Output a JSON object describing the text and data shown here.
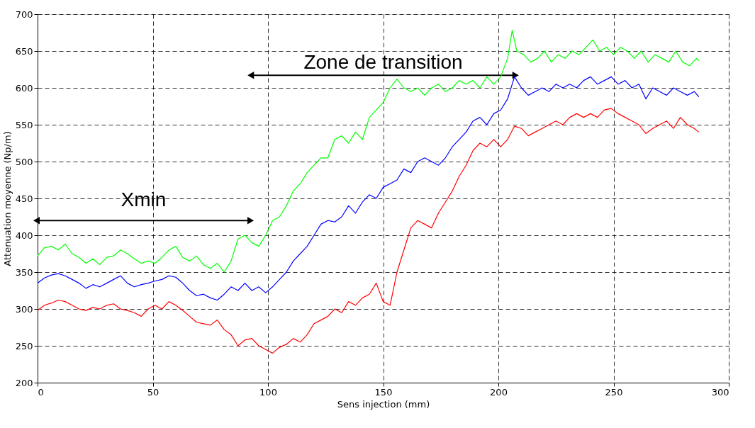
{
  "chart_data": {
    "type": "line",
    "xlabel": "Sens injection (mm)",
    "ylabel": "Attenuation moyenne (Np/m)",
    "xlim": [
      0,
      300
    ],
    "xticks": [
      0,
      50,
      100,
      150,
      200,
      250,
      300
    ],
    "ylim": [
      200,
      700
    ],
    "yticks": [
      200,
      250,
      300,
      350,
      400,
      450,
      500,
      550,
      600,
      650,
      700
    ],
    "grid": true,
    "legend": false,
    "line_style": "solid",
    "marker": "none",
    "annotations": [
      "Xmin",
      "Zone de transition"
    ],
    "x": [
      0,
      3,
      6,
      9,
      12,
      15,
      18,
      21,
      24,
      27,
      30,
      33,
      36,
      39,
      42,
      45,
      48,
      51,
      54,
      57,
      60,
      63,
      66,
      69,
      72,
      75,
      78,
      81,
      84,
      87,
      90,
      93,
      96,
      99,
      102,
      105,
      108,
      111,
      114,
      117,
      120,
      123,
      126,
      129,
      132,
      135,
      138,
      141,
      144,
      147,
      150,
      153,
      156,
      159,
      162,
      165,
      168,
      171,
      174,
      177,
      180,
      183,
      186,
      189,
      192,
      195,
      198,
      201,
      204,
      207,
      210,
      213,
      216,
      219,
      222,
      225,
      228,
      231,
      234,
      237,
      240,
      243,
      246,
      249,
      252,
      255,
      258,
      261,
      264,
      267,
      270,
      273,
      276,
      279,
      282,
      285,
      287
    ],
    "series": [
      {
        "color": "#00ff00",
        "x": [
          0,
          3,
          6,
          9,
          12,
          15,
          18,
          21,
          24,
          27,
          30,
          33,
          36,
          39,
          42,
          45,
          48,
          51,
          54,
          57,
          60,
          63,
          66,
          69,
          72,
          75,
          78,
          81,
          84,
          87,
          90,
          93,
          96,
          99,
          102,
          105,
          108,
          111,
          114,
          117,
          120,
          123,
          126,
          129,
          132,
          135,
          138,
          141,
          144,
          147,
          150,
          153,
          156,
          159,
          162,
          165,
          168,
          171,
          174,
          177,
          180,
          183,
          186,
          189,
          192,
          195,
          198,
          201,
          204,
          206,
          208,
          211,
          214,
          217,
          220,
          223,
          226,
          229,
          232,
          235,
          238,
          241,
          244,
          247,
          250,
          253,
          256,
          259,
          262,
          265,
          268,
          271,
          274,
          277,
          280,
          283,
          286,
          287
        ],
        "values": [
          372,
          383,
          385,
          380,
          388,
          375,
          370,
          362,
          368,
          360,
          370,
          372,
          380,
          375,
          368,
          362,
          365,
          362,
          370,
          380,
          385,
          370,
          365,
          372,
          360,
          355,
          362,
          350,
          365,
          395,
          400,
          390,
          385,
          400,
          420,
          425,
          440,
          460,
          470,
          485,
          495,
          505,
          505,
          530,
          535,
          525,
          540,
          530,
          560,
          570,
          580,
          600,
          612,
          600,
          595,
          600,
          590,
          600,
          605,
          595,
          600,
          610,
          605,
          610,
          600,
          615,
          605,
          615,
          640,
          678,
          650,
          645,
          635,
          640,
          650,
          635,
          645,
          640,
          650,
          645,
          655,
          665,
          650,
          655,
          645,
          655,
          650,
          640,
          650,
          635,
          645,
          640,
          635,
          650,
          635,
          630,
          640,
          637
        ]
      },
      {
        "color": "#0000ff",
        "values": [
          335,
          342,
          346,
          348,
          345,
          340,
          335,
          328,
          333,
          330,
          335,
          340,
          345,
          335,
          330,
          333,
          335,
          338,
          340,
          345,
          343,
          335,
          325,
          318,
          320,
          315,
          312,
          320,
          330,
          325,
          335,
          325,
          330,
          322,
          330,
          340,
          350,
          365,
          375,
          385,
          400,
          415,
          420,
          418,
          425,
          440,
          430,
          445,
          455,
          450,
          465,
          470,
          475,
          490,
          485,
          500,
          505,
          500,
          495,
          505,
          520,
          530,
          540,
          555,
          560,
          550,
          565,
          570,
          585,
          615,
          600,
          590,
          595,
          600,
          595,
          605,
          600,
          605,
          600,
          610,
          615,
          605,
          610,
          615,
          605,
          610,
          600,
          605,
          585,
          600,
          595,
          590,
          600,
          595,
          590,
          595,
          588
        ]
      },
      {
        "color": "#ff0000",
        "values": [
          298,
          305,
          308,
          312,
          310,
          305,
          300,
          298,
          302,
          300,
          305,
          307,
          300,
          298,
          295,
          290,
          300,
          305,
          300,
          310,
          305,
          298,
          290,
          282,
          280,
          278,
          285,
          272,
          265,
          250,
          258,
          260,
          250,
          245,
          240,
          248,
          252,
          260,
          255,
          265,
          280,
          285,
          290,
          300,
          295,
          310,
          305,
          315,
          320,
          335,
          310,
          305,
          350,
          380,
          410,
          420,
          415,
          410,
          430,
          445,
          460,
          480,
          495,
          515,
          525,
          520,
          530,
          520,
          530,
          548,
          545,
          535,
          540,
          545,
          550,
          555,
          550,
          560,
          565,
          560,
          565,
          560,
          570,
          572,
          565,
          560,
          555,
          550,
          538,
          545,
          550,
          555,
          545,
          560,
          550,
          545,
          540
        ]
      }
    ]
  }
}
